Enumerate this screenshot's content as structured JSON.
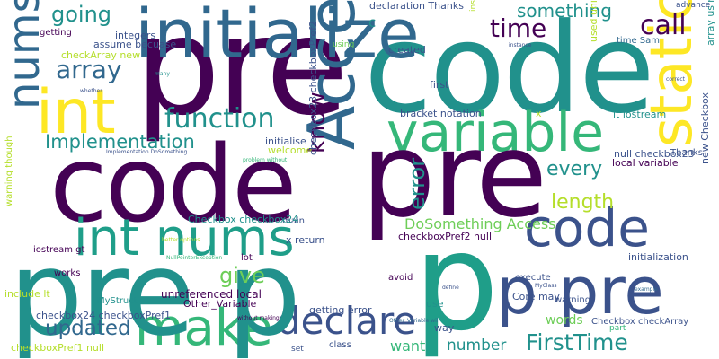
{
  "palette": {
    "dark_purple": "#440154",
    "indigo": "#3b528b",
    "slate_blue": "#31688e",
    "teal": "#21918c",
    "sea_green": "#1f9e89",
    "green": "#35b779",
    "lime": "#6ece58",
    "yellow_green": "#b5de2b",
    "yellow": "#fde725"
  },
  "words": [
    {
      "text": "pre"
    },
    {
      "text": "code"
    },
    {
      "text": "initialize"
    },
    {
      "text": "int"
    },
    {
      "text": "variable"
    },
    {
      "text": "Access"
    },
    {
      "text": "static"
    },
    {
      "text": "code"
    },
    {
      "text": "pre"
    },
    {
      "text": "int nums"
    },
    {
      "text": "nums code"
    },
    {
      "text": "make"
    },
    {
      "text": "declare"
    },
    {
      "text": "p"
    },
    {
      "text": "p pre"
    },
    {
      "text": "code"
    },
    {
      "text": "pre p"
    },
    {
      "text": "array"
    },
    {
      "text": "function"
    },
    {
      "text": "Implementation"
    },
    {
      "text": "going"
    },
    {
      "text": "time"
    },
    {
      "text": "call"
    },
    {
      "text": "something"
    },
    {
      "text": "know"
    },
    {
      "text": "error"
    },
    {
      "text": "every"
    },
    {
      "text": "length"
    },
    {
      "text": "give"
    },
    {
      "text": "updated"
    },
    {
      "text": "FirstTime"
    },
    {
      "text": "number"
    },
    {
      "text": "DoSomething Access"
    },
    {
      "text": "words"
    },
    {
      "text": "want"
    },
    {
      "text": "declaration Thanks"
    },
    {
      "text": "integers"
    },
    {
      "text": "assume becuase"
    },
    {
      "text": "checkArray new"
    },
    {
      "text": "getting"
    },
    {
      "text": "using"
    },
    {
      "text": "created"
    },
    {
      "text": "first"
    },
    {
      "text": "bracket notation"
    },
    {
      "text": "lt iostream"
    },
    {
      "text": "null checkbox23"
    },
    {
      "text": "local variable"
    },
    {
      "text": "Thanks"
    },
    {
      "text": "new Checkbox"
    },
    {
      "text": "array using"
    },
    {
      "text": "time Sam"
    },
    {
      "text": "advance"
    },
    {
      "text": "initialise"
    },
    {
      "text": "welcome"
    },
    {
      "text": "main"
    },
    {
      "text": "Checkbox checkbox24"
    },
    {
      "text": "x return"
    },
    {
      "text": "lot"
    },
    {
      "text": "unreferenced local"
    },
    {
      "text": "Other_Variable"
    },
    {
      "text": "checkbox24 checkboxPref1"
    },
    {
      "text": "checkboxPref1 null"
    },
    {
      "text": "getting error"
    },
    {
      "text": "Core may"
    },
    {
      "text": "execute"
    },
    {
      "text": "warning"
    },
    {
      "text": "initialization"
    },
    {
      "text": "checkboxPref2 null"
    },
    {
      "text": "avoid"
    },
    {
      "text": "use"
    },
    {
      "text": "way"
    },
    {
      "text": "part"
    },
    {
      "text": "Checkbox checkArray"
    },
    {
      "text": "class"
    },
    {
      "text": "set"
    },
    {
      "text": "MyStruct"
    },
    {
      "text": "works"
    },
    {
      "text": "iostream gt"
    },
    {
      "text": "include lt"
    },
    {
      "text": "warning though"
    },
    {
      "text": "checkbox23 checkboxPref2"
    },
    {
      "text": "used uninitialized"
    },
    {
      "text": "x"
    },
    {
      "text": "instead"
    },
    {
      "text": "c"
    },
    {
      "text": "Implementation DoSomething"
    },
    {
      "text": "problem without"
    },
    {
      "text": "Other_Variable will"
    },
    {
      "text": "without making"
    },
    {
      "text": "NullPointerException"
    },
    {
      "text": "better options"
    },
    {
      "text": "whether"
    },
    {
      "text": "correct"
    },
    {
      "text": "example"
    },
    {
      "text": "MyClass"
    },
    {
      "text": "instance"
    },
    {
      "text": "many"
    },
    {
      "text": "define"
    }
  ]
}
